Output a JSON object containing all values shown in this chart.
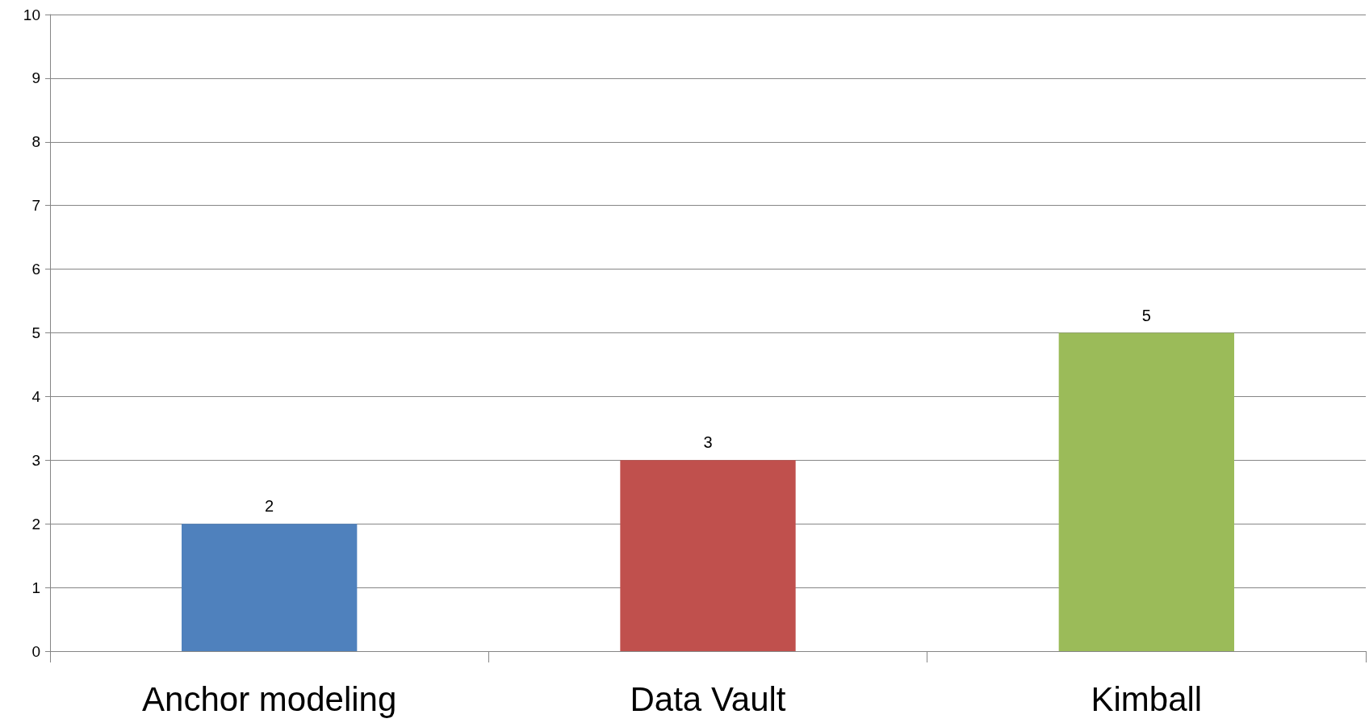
{
  "chart_data": {
    "type": "bar",
    "categories": [
      "Anchor modeling",
      "Data Vault",
      "Kimball"
    ],
    "values": [
      2,
      3,
      5
    ],
    "colors": [
      "#4f81bd",
      "#c0504d",
      "#9bbb59"
    ],
    "ylim": [
      0,
      10
    ],
    "yticks": [
      0,
      1,
      2,
      3,
      4,
      5,
      6,
      7,
      8,
      9,
      10
    ],
    "grid": "y",
    "data_labels": true
  }
}
